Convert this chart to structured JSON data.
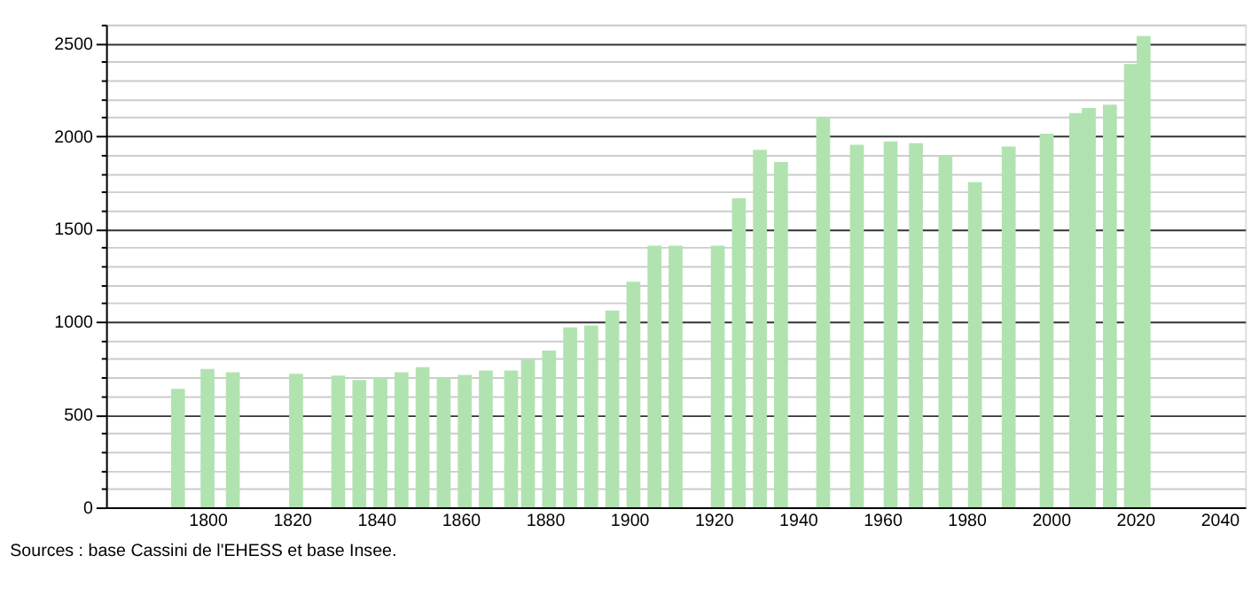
{
  "chart_data": {
    "type": "bar",
    "x": [
      1793,
      1800,
      1806,
      1821,
      1831,
      1836,
      1841,
      1846,
      1851,
      1856,
      1861,
      1866,
      1872,
      1876,
      1881,
      1886,
      1891,
      1896,
      1901,
      1906,
      1911,
      1921,
      1926,
      1931,
      1936,
      1946,
      1954,
      1962,
      1968,
      1975,
      1982,
      1990,
      1999,
      2006,
      2009,
      2014,
      2019,
      2022
    ],
    "values": [
      638,
      745,
      728,
      719,
      710,
      686,
      701,
      728,
      755,
      698,
      713,
      737,
      737,
      796,
      844,
      970,
      979,
      1060,
      1215,
      1410,
      1410,
      1410,
      1665,
      1926,
      1860,
      2100,
      1953,
      1971,
      1962,
      1896,
      1752,
      1944,
      2013,
      2124,
      2151,
      2169,
      2388,
      2538
    ],
    "color": "#b1e3b1",
    "xlim": [
      1778,
      2044
    ],
    "xticks": [
      1800,
      1820,
      1840,
      1860,
      1880,
      1900,
      1920,
      1940,
      1960,
      1980,
      2000,
      2020,
      2040
    ],
    "ylim": [
      0,
      2600
    ],
    "yticks": [
      0,
      {
        "value": 100,
        "label": null
      },
      {
        "value": 200,
        "label": null
      },
      {
        "value": 300,
        "label": null
      },
      {
        "value": 400,
        "label": null
      },
      500,
      {
        "value": 600,
        "label": null
      },
      {
        "value": 700,
        "label": null
      },
      {
        "value": 800,
        "label": null
      },
      {
        "value": 900,
        "label": null
      },
      1000,
      {
        "value": 1100,
        "label": null
      },
      {
        "value": 1200,
        "label": null
      },
      {
        "value": 1300,
        "label": null
      },
      {
        "value": 1400,
        "label": null
      },
      1500,
      {
        "value": 1600,
        "label": null
      },
      {
        "value": 1700,
        "label": null
      },
      {
        "value": 1800,
        "label": null
      },
      {
        "value": 1900,
        "label": null
      },
      2000,
      {
        "value": 2100,
        "label": null
      },
      {
        "value": 2200,
        "label": null
      },
      {
        "value": 2300,
        "label": null
      },
      {
        "value": 2400,
        "label": null
      },
      2500,
      {
        "value": 2600,
        "label": null
      }
    ],
    "grid": "y",
    "annotations": [
      "Sources : base Cassini de l'EHESS et base Insee."
    ]
  }
}
